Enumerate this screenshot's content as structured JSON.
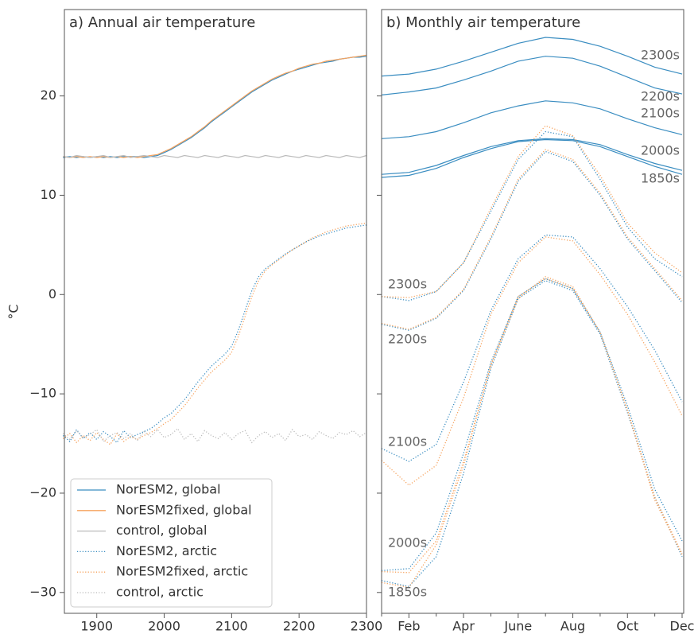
{
  "chart_data": [
    {
      "type": "line",
      "title": "a) Annual air temperature",
      "ylabel": "°C",
      "x": [
        1850,
        1860,
        1870,
        1880,
        1890,
        1900,
        1910,
        1920,
        1930,
        1940,
        1950,
        1960,
        1970,
        1980,
        1990,
        2000,
        2010,
        2020,
        2030,
        2040,
        2050,
        2060,
        2070,
        2080,
        2090,
        2100,
        2110,
        2120,
        2130,
        2140,
        2150,
        2160,
        2170,
        2180,
        2190,
        2200,
        2210,
        2220,
        2230,
        2240,
        2250,
        2260,
        2270,
        2280,
        2290,
        2300
      ],
      "xlim": [
        1852,
        2300
      ],
      "xticks": [
        1900,
        2000,
        2100,
        2200,
        2300
      ],
      "ylim": [
        -32.1,
        28.7
      ],
      "yticks": [
        {
          "value": -30,
          "label": "−30"
        },
        {
          "value": -20,
          "label": "−20"
        },
        {
          "value": -10,
          "label": "−10"
        },
        0,
        10,
        20
      ],
      "legend": "lower left",
      "series": [
        {
          "name": "NorESM2, global",
          "color": "#3a8dc1",
          "style": "solid",
          "values": [
            13.8,
            13.9,
            13.8,
            13.9,
            13.8,
            13.9,
            13.8,
            13.9,
            13.8,
            13.9,
            13.9,
            13.9,
            13.8,
            13.9,
            14.0,
            14.3,
            14.6,
            15.0,
            15.4,
            15.8,
            16.3,
            16.8,
            17.4,
            17.9,
            18.4,
            18.9,
            19.4,
            19.9,
            20.4,
            20.8,
            21.2,
            21.6,
            21.9,
            22.2,
            22.5,
            22.7,
            22.9,
            23.1,
            23.3,
            23.4,
            23.5,
            23.7,
            23.8,
            23.9,
            23.9,
            24.0
          ]
        },
        {
          "name": "NorESM2fixed, global",
          "color": "#f6a25d",
          "style": "solid",
          "values": [
            13.9,
            13.8,
            13.9,
            13.8,
            13.9,
            13.8,
            13.9,
            13.8,
            13.9,
            13.8,
            13.9,
            13.8,
            13.9,
            14.0,
            14.1,
            14.4,
            14.7,
            15.1,
            15.5,
            15.9,
            16.4,
            16.9,
            17.5,
            18.0,
            18.5,
            19.0,
            19.5,
            20.0,
            20.5,
            20.9,
            21.3,
            21.7,
            22.0,
            22.3,
            22.5,
            22.8,
            23.0,
            23.2,
            23.3,
            23.5,
            23.6,
            23.7,
            23.8,
            23.9,
            24.0,
            24.1
          ]
        },
        {
          "name": "control, global",
          "color": "#bbbbbb",
          "style": "solid",
          "values": [
            13.9,
            13.8,
            14.0,
            13.9,
            13.8,
            13.9,
            14.0,
            13.8,
            13.9,
            14.0,
            13.8,
            13.9,
            14.0,
            13.9,
            13.8,
            14.0,
            13.9,
            13.8,
            14.0,
            13.9,
            13.8,
            14.0,
            13.9,
            13.8,
            14.0,
            13.9,
            13.8,
            14.0,
            13.9,
            13.8,
            14.0,
            13.9,
            13.8,
            14.0,
            13.9,
            13.8,
            14.0,
            13.9,
            13.8,
            14.0,
            13.9,
            13.8,
            14.0,
            13.9,
            13.8,
            14.0
          ]
        },
        {
          "name": "NorESM2, arctic",
          "color": "#3a8dc1",
          "style": "dotted",
          "values": [
            -14.2,
            -14.8,
            -13.6,
            -14.5,
            -13.9,
            -14.6,
            -13.8,
            -14.3,
            -14.9,
            -13.7,
            -14.4,
            -14.1,
            -13.8,
            -13.5,
            -13.0,
            -12.4,
            -12.0,
            -11.3,
            -10.6,
            -9.7,
            -8.8,
            -8.0,
            -7.2,
            -6.6,
            -6.0,
            -5.2,
            -3.6,
            -1.6,
            0.4,
            1.8,
            2.6,
            3.1,
            3.6,
            4.1,
            4.5,
            4.9,
            5.3,
            5.6,
            5.9,
            6.1,
            6.3,
            6.5,
            6.7,
            6.8,
            6.9,
            7.0
          ]
        },
        {
          "name": "NorESM2fixed, arctic",
          "color": "#f6a25d",
          "style": "dotted",
          "values": [
            -14.5,
            -14.0,
            -14.9,
            -14.2,
            -14.7,
            -13.9,
            -14.6,
            -15.1,
            -14.0,
            -14.8,
            -14.3,
            -14.6,
            -14.2,
            -13.9,
            -13.5,
            -13.0,
            -12.6,
            -11.9,
            -11.2,
            -10.3,
            -9.4,
            -8.6,
            -7.8,
            -7.2,
            -6.6,
            -5.8,
            -4.2,
            -2.2,
            -0.2,
            1.4,
            2.4,
            3.0,
            3.5,
            4.0,
            4.5,
            4.9,
            5.3,
            5.7,
            6.0,
            6.3,
            6.5,
            6.7,
            6.9,
            7.0,
            7.1,
            7.2
          ]
        },
        {
          "name": "control, arctic",
          "color": "#bbbbbb",
          "style": "dotted",
          "values": [
            -14.0,
            -14.6,
            -13.7,
            -14.4,
            -14.1,
            -13.6,
            -14.8,
            -14.2,
            -13.9,
            -14.5,
            -14.0,
            -14.7,
            -13.8,
            -14.3,
            -13.6,
            -14.4,
            -14.1,
            -13.5,
            -14.6,
            -14.0,
            -14.8,
            -13.7,
            -14.2,
            -14.5,
            -13.9,
            -14.6,
            -14.0,
            -13.7,
            -14.9,
            -14.2,
            -13.8,
            -14.4,
            -14.0,
            -14.7,
            -13.6,
            -14.3,
            -14.1,
            -14.6,
            -13.8,
            -14.2,
            -14.5,
            -13.9,
            -14.1,
            -13.7,
            -14.3,
            -13.9
          ]
        }
      ]
    },
    {
      "type": "line",
      "title": "b) Monthly air temperature",
      "categories": [
        null,
        "Feb",
        null,
        "Apr",
        null,
        "June",
        null,
        "Aug",
        null,
        "Oct",
        null,
        "Dec"
      ],
      "ylim": [
        -32.1,
        28.7
      ],
      "yticks": [
        -30,
        -20,
        -10,
        0,
        10,
        20
      ],
      "series": [
        {
          "name": "1850s",
          "color": "#3a8dc1",
          "style": "solid",
          "values": [
            11.8,
            12.0,
            12.7,
            13.8,
            14.7,
            15.4,
            15.6,
            15.5,
            14.9,
            13.9,
            12.9,
            12.1
          ]
        },
        {
          "name": "2000s",
          "color": "#3a8dc1",
          "style": "solid",
          "values": [
            12.1,
            12.3,
            13.0,
            14.0,
            14.9,
            15.5,
            15.7,
            15.6,
            15.1,
            14.1,
            13.2,
            12.5
          ]
        },
        {
          "name": "2100s",
          "color": "#3a8dc1",
          "style": "solid",
          "values": [
            15.7,
            15.9,
            16.4,
            17.3,
            18.3,
            19.0,
            19.5,
            19.3,
            18.7,
            17.7,
            16.8,
            16.1
          ]
        },
        {
          "name": "2200s",
          "color": "#3a8dc1",
          "style": "solid",
          "values": [
            20.1,
            20.4,
            20.8,
            21.6,
            22.5,
            23.5,
            24.0,
            23.8,
            23.0,
            21.9,
            20.8,
            20.2
          ]
        },
        {
          "name": "2300s",
          "color": "#3a8dc1",
          "style": "solid",
          "values": [
            22.0,
            22.2,
            22.7,
            23.5,
            24.4,
            25.3,
            25.9,
            25.7,
            25.0,
            24.0,
            22.9,
            22.2
          ]
        },
        {
          "name": "1850s",
          "color": "#3a8dc1",
          "style": "dotted",
          "values": [
            -28.8,
            -29.4,
            -26.4,
            -18.0,
            -7.4,
            -0.4,
            1.4,
            0.4,
            -4.0,
            -11.9,
            -20.4,
            -26.4
          ]
        },
        {
          "name": "2000s",
          "color": "#3a8dc1",
          "style": "dotted",
          "values": [
            -27.8,
            -27.6,
            -24.0,
            -16.0,
            -6.8,
            -0.2,
            1.6,
            0.6,
            -3.8,
            -11.2,
            -19.6,
            -24.8
          ]
        },
        {
          "name": "2100s",
          "color": "#3a8dc1",
          "style": "dotted",
          "values": [
            -15.5,
            -16.8,
            -15.1,
            -8.8,
            -1.6,
            3.6,
            6.0,
            5.8,
            2.6,
            -1.2,
            -5.6,
            -10.8
          ]
        },
        {
          "name": "2200s",
          "color": "#3a8dc1",
          "style": "dotted",
          "values": [
            -3.0,
            -3.6,
            -2.4,
            0.4,
            5.6,
            11.4,
            14.4,
            13.4,
            10.0,
            5.6,
            2.4,
            -0.8
          ]
        },
        {
          "name": "2300s",
          "color": "#3a8dc1",
          "style": "dotted",
          "values": [
            -0.2,
            -0.6,
            0.3,
            3.2,
            8.4,
            13.6,
            16.4,
            15.9,
            11.6,
            6.8,
            3.6,
            1.8
          ]
        },
        {
          "color": "#f6a25d",
          "style": "dotted",
          "values": [
            -29.0,
            -29.5,
            -25.2,
            -17.2,
            -7.0,
            -0.2,
            1.6,
            0.6,
            -3.8,
            -11.7,
            -20.7,
            -26.2
          ]
        },
        {
          "color": "#f6a25d",
          "style": "dotted",
          "values": [
            -27.9,
            -28.0,
            -24.8,
            -16.8,
            -7.2,
            -0.4,
            1.8,
            0.8,
            -3.8,
            -11.6,
            -20.4,
            -26.1
          ]
        },
        {
          "color": "#f6a25d",
          "style": "dotted",
          "values": [
            -16.7,
            -19.2,
            -17.2,
            -10.4,
            -2.0,
            3.2,
            5.8,
            5.4,
            2.0,
            -2.0,
            -6.8,
            -12.2
          ]
        },
        {
          "color": "#f6a25d",
          "style": "dotted",
          "values": [
            -2.9,
            -3.5,
            -2.3,
            0.5,
            5.8,
            11.6,
            14.6,
            13.6,
            10.2,
            5.8,
            2.6,
            -0.6
          ]
        },
        {
          "color": "#f6a25d",
          "style": "dotted",
          "values": [
            -0.2,
            -0.3,
            0.3,
            3.2,
            8.7,
            13.9,
            17.0,
            16.0,
            12.0,
            7.2,
            4.2,
            2.2
          ]
        }
      ]
    }
  ]
}
